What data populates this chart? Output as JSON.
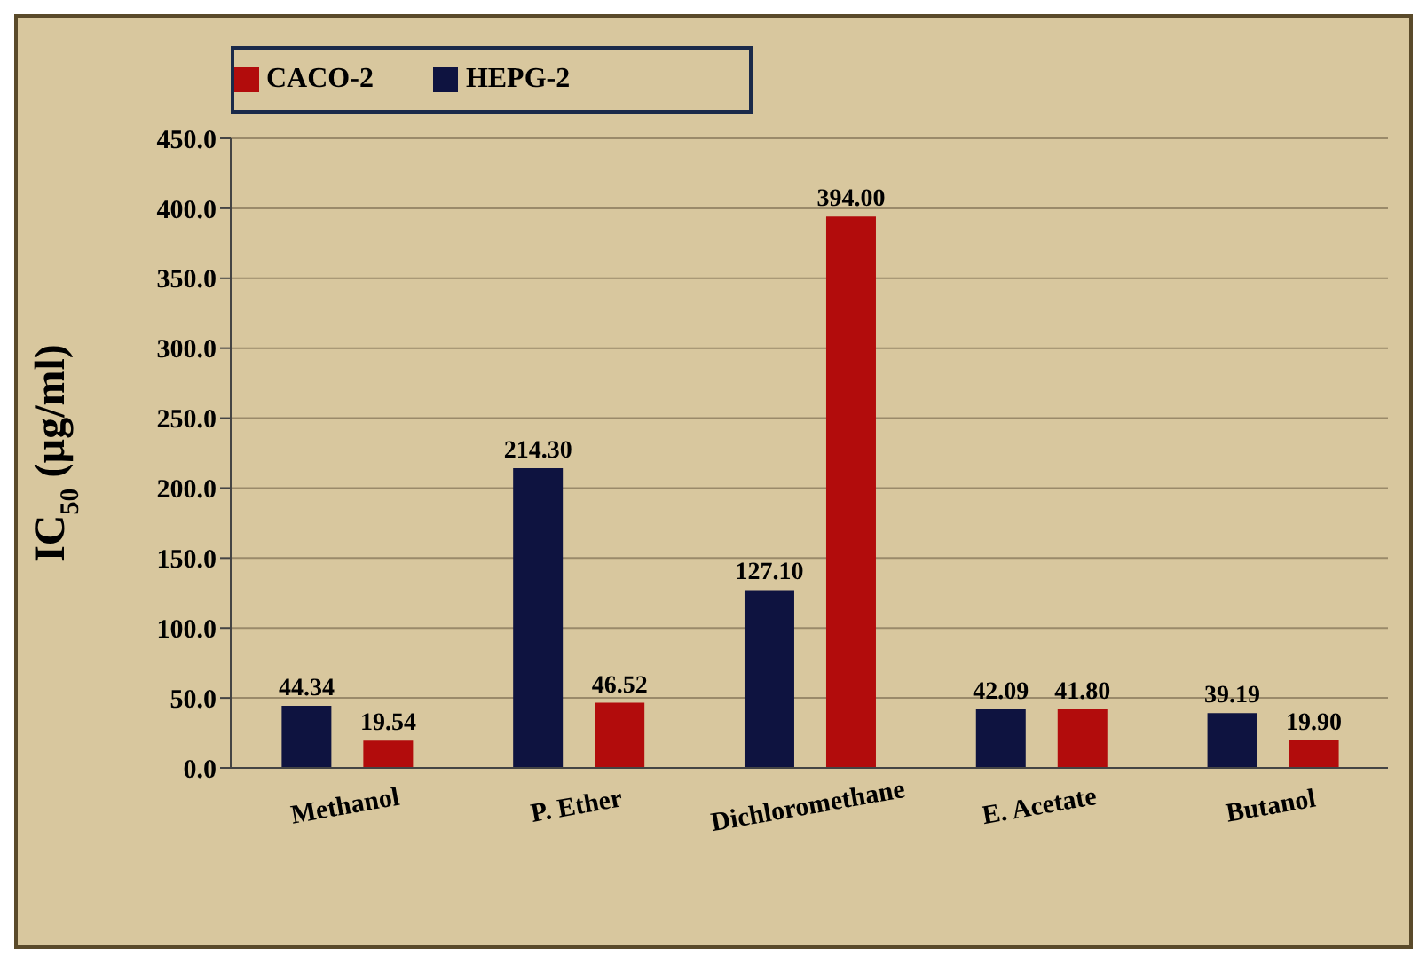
{
  "chart_data": {
    "type": "bar",
    "ylabel": "IC$_{50}$ (µg/ml)",
    "categories": [
      "Methanol",
      "P. Ether",
      "Dichloromethane",
      "E. Acetate",
      "Butanol"
    ],
    "series": [
      {
        "name": "HEPG-2",
        "color": "#0e1340",
        "values": [
          44.34,
          214.3,
          127.1,
          42.09,
          39.19
        ],
        "value_labels": [
          "44.34",
          "214.30",
          "127.10",
          "42.09",
          "39.19"
        ]
      },
      {
        "name": "CACO-2",
        "color": "#b20c0c",
        "values": [
          19.54,
          46.52,
          394,
          41.8,
          19.9
        ],
        "value_labels": [
          "19.54",
          "46.52",
          "394.00",
          "41.80",
          "19.90"
        ]
      }
    ],
    "ylim": [
      0,
      450
    ],
    "yticks": [
      {
        "value": 0,
        "label": "0.0"
      },
      {
        "value": 50,
        "label": "50.0"
      },
      {
        "value": 100,
        "label": "100.0"
      },
      {
        "value": 150,
        "label": "150.0"
      },
      {
        "value": 200,
        "label": "200.0"
      },
      {
        "value": 250,
        "label": "250.0"
      },
      {
        "value": 300,
        "label": "300.0"
      },
      {
        "value": 350,
        "label": "350.0"
      },
      {
        "value": 400,
        "label": "400.0"
      },
      {
        "value": 450,
        "label": "450.0"
      }
    ],
    "grid": "y",
    "legend": "top left"
  }
}
